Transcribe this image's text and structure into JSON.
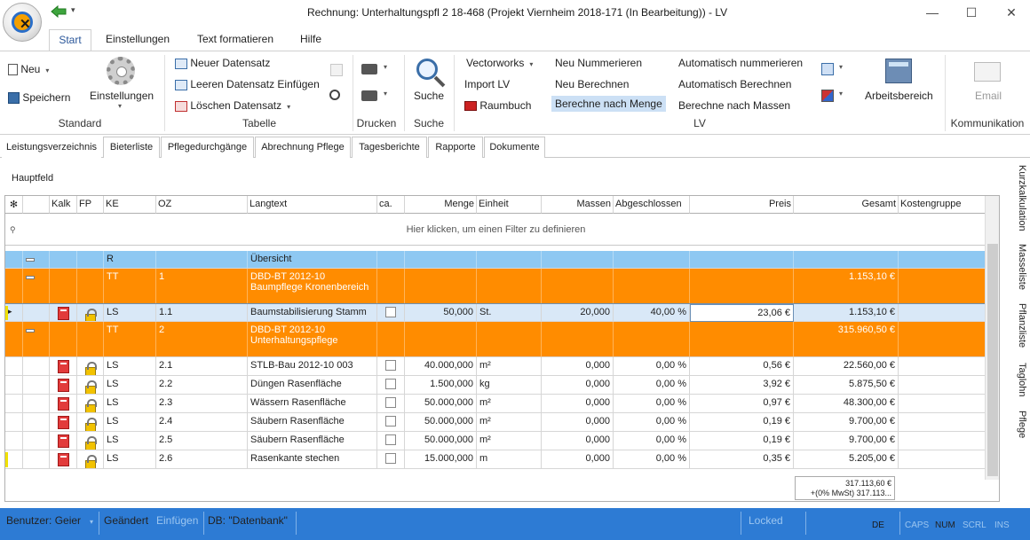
{
  "window": {
    "title": "Rechnung:  Unterhaltungspfl 2 18-468 (Projekt Viernheim 2018-171 (In Bearbeitung)) - LV",
    "minimize": "—",
    "maximize": "☐",
    "close": "✕"
  },
  "ribbon_tabs": [
    "Start",
    "Einstellungen",
    "Text formatieren",
    "Hilfe"
  ],
  "ribbon": {
    "standard": {
      "neu": "Neu",
      "speichern": "Speichern",
      "einstellungen": "Einstellungen",
      "label": "Standard"
    },
    "tabelle": {
      "neuer": "Neuer Datensatz",
      "leeren": "Leeren Datensatz Einfügen",
      "loeschen": "Löschen Datensatz",
      "label": "Tabelle"
    },
    "drucken": {
      "label": "Drucken"
    },
    "suche": {
      "suche": "Suche",
      "label": "Suche"
    },
    "lv": {
      "vectorworks": "Vectorworks",
      "import": "Import LV",
      "raumbuch": "Raumbuch",
      "neu_nummerieren": "Neu Nummerieren",
      "neu_berechnen": "Neu Berechnen",
      "berechne_menge": "Berechne nach Menge",
      "auto_nummerieren": "Automatisch nummerieren",
      "auto_berechnen": "Automatisch Berechnen",
      "berechne_massen": "Berechne nach Massen",
      "arbeitsbereich": "Arbeitsbereich",
      "label": "LV"
    },
    "kommunikation": {
      "email": "Email",
      "label": "Kommunikation"
    }
  },
  "subtabs": [
    "Leistungsverzeichnis",
    "Bieterliste",
    "Pflegedurchgänge",
    "Abrechnung Pflege",
    "Tagesberichte",
    "Rapporte",
    "Dokumente"
  ],
  "panel": {
    "title": "Hauptfeld"
  },
  "grid": {
    "columns": [
      "Kalk",
      "FP",
      "KE",
      "OZ",
      "Langtext",
      "ca.",
      "Menge",
      "Einheit",
      "Massen",
      "Abgeschlossen",
      "Preis",
      "Gesamt",
      "Kostengruppe"
    ],
    "filter_text": "Hier klicken, um einen Filter zu definieren",
    "rows": [
      {
        "kind": "group",
        "ke": "R",
        "oz": "",
        "text": "Übersicht",
        "menge": "",
        "einheit": "",
        "massen": "",
        "abg": "",
        "preis": "",
        "gesamt": ""
      },
      {
        "kind": "title",
        "ke": "TT",
        "oz": "1",
        "text": "DBD-BT 2012-10 Baumpflege Kronenbereich",
        "menge": "",
        "einheit": "",
        "massen": "",
        "abg": "",
        "preis": "",
        "gesamt": "1.153,10 €"
      },
      {
        "kind": "selected",
        "ke": "LS",
        "oz": "1.1",
        "text": "Baumstabilisierung Stamm",
        "menge": "50,000",
        "einheit": "St.",
        "massen": "20,000",
        "abg": "40,00 %",
        "preis": "23,06 €",
        "gesamt": "1.153,10 €"
      },
      {
        "kind": "title",
        "ke": "TT",
        "oz": "2",
        "text": "DBD-BT 2012-10 Unterhaltungspflege",
        "menge": "",
        "einheit": "",
        "massen": "",
        "abg": "",
        "preis": "",
        "gesamt": "315.960,50 €"
      },
      {
        "kind": "item",
        "ke": "LS",
        "oz": "2.1",
        "text": "STLB-Bau 2012-10 003",
        "menge": "40.000,000",
        "einheit": "m²",
        "massen": "0,000",
        "abg": "0,00 %",
        "preis": "0,56 €",
        "gesamt": "22.560,00 €"
      },
      {
        "kind": "item",
        "ke": "LS",
        "oz": "2.2",
        "text": "Düngen Rasenfläche",
        "menge": "1.500,000",
        "einheit": "kg",
        "massen": "0,000",
        "abg": "0,00 %",
        "preis": "3,92 €",
        "gesamt": "5.875,50 €"
      },
      {
        "kind": "item",
        "ke": "LS",
        "oz": "2.3",
        "text": "Wässern Rasenfläche",
        "menge": "50.000,000",
        "einheit": "m²",
        "massen": "0,000",
        "abg": "0,00 %",
        "preis": "0,97 €",
        "gesamt": "48.300,00 €"
      },
      {
        "kind": "item",
        "ke": "LS",
        "oz": "2.4",
        "text": "Säubern Rasenfläche",
        "menge": "50.000,000",
        "einheit": "m²",
        "massen": "0,000",
        "abg": "0,00 %",
        "preis": "0,19 €",
        "gesamt": "9.700,00 €"
      },
      {
        "kind": "item",
        "ke": "LS",
        "oz": "2.5",
        "text": "Säubern Rasenfläche",
        "menge": "50.000,000",
        "einheit": "m²",
        "massen": "0,000",
        "abg": "0,00 %",
        "preis": "0,19 €",
        "gesamt": "9.700,00 €"
      },
      {
        "kind": "item",
        "ke": "LS",
        "oz": "2.6",
        "text": "Rasenkante stechen",
        "menge": "15.000,000",
        "einheit": "m",
        "massen": "0,000",
        "abg": "0,00 %",
        "preis": "0,35 €",
        "gesamt": "5.205,00 €"
      }
    ],
    "summary_line1": "317.113,60 €",
    "summary_line2": "+(0% MwSt) 317.113..."
  },
  "side_tabs": [
    "Kurzkalkulation",
    "Masseliste",
    "Pflanzliste",
    "Taglohn",
    "Pflege"
  ],
  "status": {
    "user": "Benutzer: Geier",
    "changed": "Geändert",
    "insert": "Einfügen",
    "db": "DB: \"Datenbank\"",
    "locked": "Locked",
    "lang": "DE",
    "caps": "CAPS",
    "num": "NUM",
    "scrl": "SCRL",
    "ins": "INS"
  },
  "colors": {
    "accent": "#2b579a",
    "orange": "#ff8c00",
    "group_blue": "#8ec8f2",
    "status_bar": "#2d7bd4",
    "selected_row": "#d9e8f7"
  }
}
